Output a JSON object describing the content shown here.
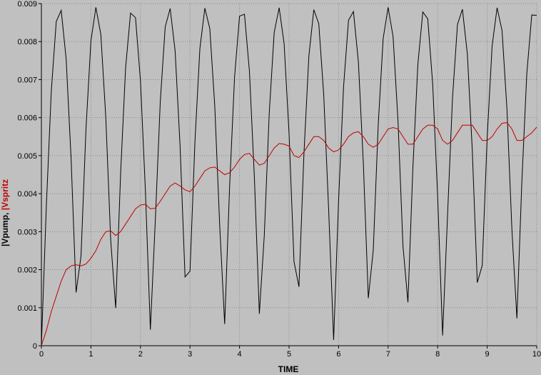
{
  "chart_data": {
    "type": "line",
    "xlabel": "TIME",
    "ylabel_separator": ",",
    "x": [
      0,
      0.1,
      0.2,
      0.3,
      0.4,
      0.5,
      0.6,
      0.7,
      0.8,
      0.9,
      1,
      1.1,
      1.2,
      1.3,
      1.4,
      1.5,
      1.6,
      1.7,
      1.8,
      1.9,
      2,
      2.1,
      2.2,
      2.3,
      2.4,
      2.5,
      2.6,
      2.7,
      2.8,
      2.9,
      3,
      3.1,
      3.2,
      3.3,
      3.4,
      3.5,
      3.6,
      3.7,
      3.8,
      3.9,
      4,
      4.1,
      4.2,
      4.3,
      4.4,
      4.5,
      4.6,
      4.7,
      4.8,
      4.9,
      5,
      5.1,
      5.2,
      5.3,
      5.4,
      5.5,
      5.6,
      5.7,
      5.8,
      5.9,
      6,
      6.1,
      6.2,
      6.3,
      6.4,
      6.5,
      6.6,
      6.7,
      6.8,
      6.9,
      7,
      7.1,
      7.2,
      7.3,
      7.4,
      7.5,
      7.6,
      7.7,
      7.8,
      7.9,
      8,
      8.1,
      8.2,
      8.3,
      8.4,
      8.5,
      8.6,
      8.7,
      8.8,
      8.9,
      9,
      9.1,
      9.2,
      9.3,
      9.4,
      9.5,
      9.6,
      9.7,
      9.8,
      9.9,
      10
    ],
    "series": [
      {
        "name": "|Vpump",
        "color": "#000000",
        "values": [
          0,
          0.00368,
          0.0067,
          0.00853,
          0.00882,
          0.00754,
          0.00491,
          0.0014,
          0.00236,
          0.0057,
          0.00802,
          0.0089,
          0.00819,
          0.00601,
          0.00276,
          0.00099,
          0.00455,
          0.00731,
          0.00875,
          0.00863,
          0.00697,
          0.00407,
          0.00042,
          0.0033,
          0.00642,
          0.00839,
          0.00887,
          0.00775,
          0.00525,
          0.00181,
          0.00196,
          0.00537,
          0.00782,
          0.00888,
          0.00834,
          0.00631,
          0.00316,
          0.00057,
          0.00419,
          0.00707,
          0.00867,
          0.00872,
          0.00722,
          0.00443,
          0.00084,
          0.0029,
          0.00612,
          0.00824,
          0.00889,
          0.00795,
          0.00558,
          0.00221,
          0.00155,
          0.00503,
          0.00762,
          0.00884,
          0.00847,
          0.0066,
          0.00356,
          0.00015,
          0.00382,
          0.0068,
          0.00856,
          0.00879,
          0.00746,
          0.00479,
          0.00125,
          0.00251,
          0.00581,
          0.00808,
          0.0089,
          0.00813,
          0.0059,
          0.00262,
          0.00114,
          0.00468,
          0.00739,
          0.00878,
          0.0086,
          0.00688,
          0.00393,
          0.00027,
          0.00344,
          0.00652,
          0.00845,
          0.00885,
          0.00767,
          0.00512,
          0.00166,
          0.00211,
          0.00549,
          0.00789,
          0.00889,
          0.00829,
          0.0062,
          0.00303,
          0.00072,
          0.00432,
          0.00716,
          0.0087,
          0.00869
        ]
      },
      {
        "name": "|Vspritz",
        "color": "#c00000",
        "values": [
          0,
          0.0004,
          0.0009,
          0.0013,
          0.0017,
          0.002,
          0.0021,
          0.00213,
          0.0021,
          0.00215,
          0.0023,
          0.0025,
          0.0028,
          0.003,
          0.00302,
          0.0029,
          0.003,
          0.0032,
          0.0034,
          0.0036,
          0.0037,
          0.00372,
          0.0036,
          0.00362,
          0.0038,
          0.004,
          0.0042,
          0.00428,
          0.0042,
          0.0041,
          0.00405,
          0.0042,
          0.0044,
          0.0046,
          0.00468,
          0.0047,
          0.0046,
          0.0045,
          0.00455,
          0.0047,
          0.0049,
          0.00503,
          0.00506,
          0.0049,
          0.00475,
          0.0048,
          0.005,
          0.0052,
          0.00532,
          0.0053,
          0.00525,
          0.005,
          0.00495,
          0.0051,
          0.0053,
          0.0055,
          0.0055,
          0.0054,
          0.0052,
          0.0051,
          0.00515,
          0.0053,
          0.0055,
          0.0056,
          0.00563,
          0.0055,
          0.0053,
          0.00522,
          0.0053,
          0.0055,
          0.0057,
          0.00574,
          0.0057,
          0.0055,
          0.0053,
          0.0053,
          0.0055,
          0.0057,
          0.0058,
          0.0058,
          0.0057,
          0.0054,
          0.0053,
          0.0054,
          0.0056,
          0.0058,
          0.0058,
          0.0058,
          0.0056,
          0.0054,
          0.0054,
          0.0055,
          0.0057,
          0.00585,
          0.00587,
          0.0057,
          0.0054,
          0.0054,
          0.0055,
          0.0056,
          0.00575
        ]
      }
    ],
    "xlim": [
      0,
      10
    ],
    "xticks": [
      0,
      1,
      2,
      3,
      4,
      5,
      6,
      7,
      8,
      9,
      10
    ],
    "ylim": [
      0,
      0.009
    ],
    "yticks": [
      0,
      0.001,
      0.002,
      0.003,
      0.004,
      0.005,
      0.006,
      0.007,
      0.008,
      0.009
    ],
    "grid": true
  }
}
